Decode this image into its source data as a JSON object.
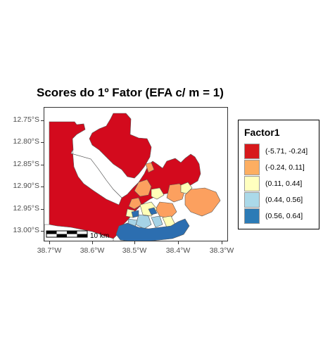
{
  "title": "Scores do 1º Fator (EFA c/ m = 1)",
  "y_ticks": [
    "12.75°S",
    "12.80°S",
    "12.85°S",
    "12.90°S",
    "12.95°S",
    "13.00°S"
  ],
  "x_ticks": [
    "38.7°W",
    "38.6°W",
    "38.5°W",
    "38.4°W",
    "38.3°W"
  ],
  "scale_bar": {
    "label": "10 km"
  },
  "legend": {
    "title": "Factor1",
    "items": [
      {
        "label": "(-5.71, -0.24]",
        "color": "#d7191c"
      },
      {
        "label": "(-0.24, 0.11]",
        "color": "#fdae61"
      },
      {
        "label": "(0.11, 0.44]",
        "color": "#ffffbf"
      },
      {
        "label": "(0.44, 0.56]",
        "color": "#abd9e9"
      },
      {
        "label": "(0.56, 0.64]",
        "color": "#2c7bb6"
      }
    ]
  },
  "colors": {
    "red": "#d30a1d",
    "orange": "#fca05f",
    "yellow": "#ffffb8",
    "lightblue": "#a6d3e6",
    "blue": "#2c6eb0",
    "border": "#555555"
  }
}
